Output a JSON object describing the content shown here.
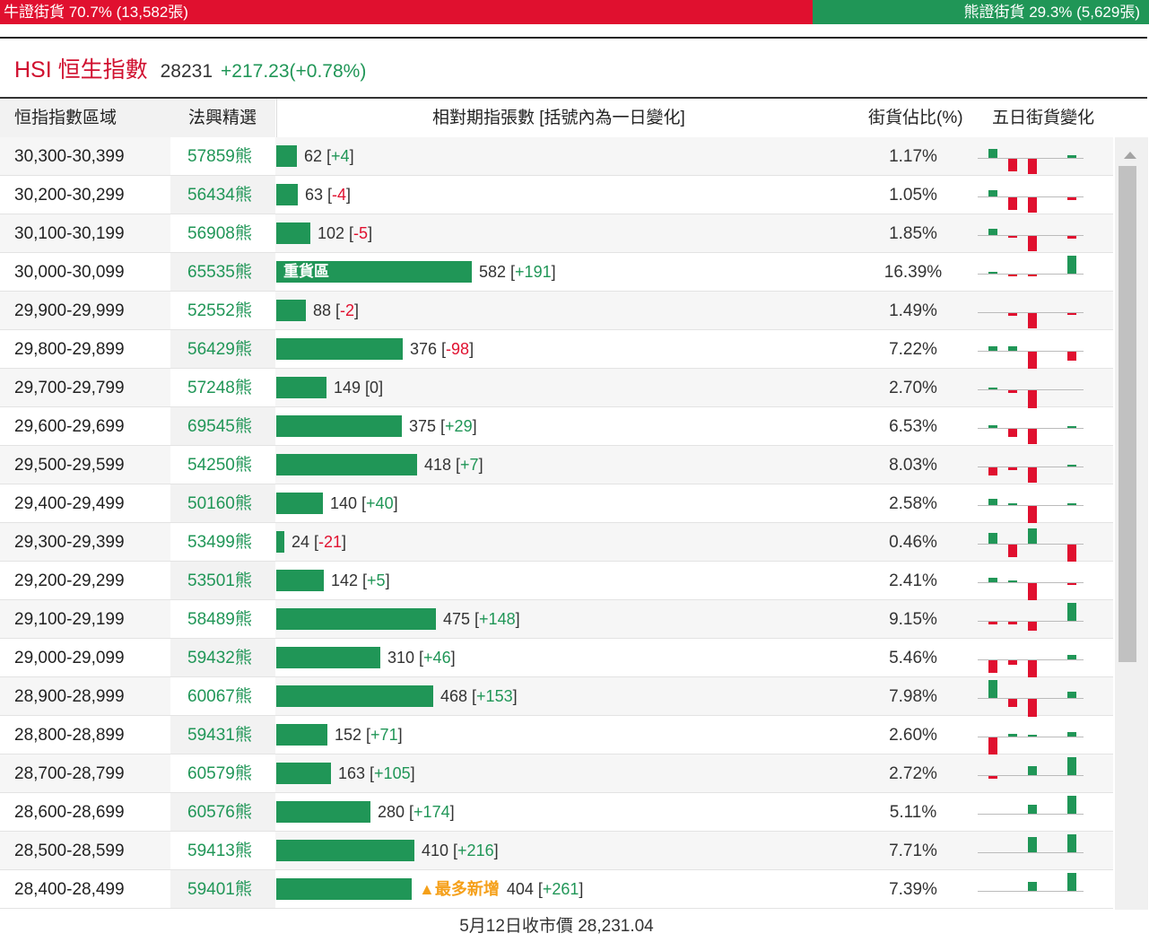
{
  "ratio": {
    "bull_label": "牛證街貨 70.7% (13,582張)",
    "bear_label": "熊證街貨 29.3% (5,629張)",
    "bull_fraction": 0.707,
    "colors": {
      "bull": "#e0102f",
      "bear": "#209657"
    }
  },
  "index": {
    "title": "HSI 恒生指數",
    "value": "28231",
    "change": "+217.23(+0.78%)"
  },
  "headers": {
    "range": "恒指指數區域",
    "code": "法興精選",
    "contracts": "相對期指張數 [括號內為一日變化]",
    "pct": "街貨佔比(%)",
    "five_day": "五日街貨變化"
  },
  "footer": "5月12日收市價 28,231.04",
  "chart_data": {
    "type": "bar",
    "title": "",
    "series_name": "相對期指張數",
    "max_contracts": 582,
    "colors": {
      "up": "#209657",
      "down": "#e0102f"
    },
    "rows": [
      {
        "range": "30,300-30,399",
        "code": "57859熊",
        "contracts": 62,
        "change": "+4",
        "pct": "1.17%",
        "spark": [
          3,
          -4,
          -5,
          0,
          1
        ]
      },
      {
        "range": "30,200-30,299",
        "code": "56434熊",
        "contracts": 63,
        "change": "-4",
        "pct": "1.05%",
        "spark": [
          2,
          -4,
          -5,
          0,
          -1
        ]
      },
      {
        "range": "30,100-30,199",
        "code": "56908熊",
        "contracts": 102,
        "change": "-5",
        "pct": "1.85%",
        "spark": [
          2,
          -0.5,
          -5,
          0,
          -1
        ]
      },
      {
        "range": "30,000-30,099",
        "code": "65535熊",
        "contracts": 582,
        "change": "+191",
        "pct": "16.39%",
        "tag": "重貨區",
        "spark": [
          0.5,
          -0.5,
          -0.5,
          0,
          6
        ]
      },
      {
        "range": "29,900-29,999",
        "code": "52552熊",
        "contracts": 88,
        "change": "-2",
        "pct": "1.49%",
        "spark": [
          0,
          -1,
          -5,
          0,
          -0.5
        ]
      },
      {
        "range": "29,800-29,899",
        "code": "56429熊",
        "contracts": 376,
        "change": "-98",
        "pct": "7.22%",
        "spark": [
          1.5,
          1.5,
          -6,
          0,
          -3
        ]
      },
      {
        "range": "29,700-29,799",
        "code": "57248熊",
        "contracts": 149,
        "change": "0",
        "pct": "2.70%",
        "spark": [
          0.5,
          -1,
          -6,
          0,
          0
        ]
      },
      {
        "range": "29,600-29,699",
        "code": "69545熊",
        "contracts": 375,
        "change": "+29",
        "pct": "6.53%",
        "spark": [
          1,
          -2.5,
          -5,
          0,
          0.5
        ]
      },
      {
        "range": "29,500-29,599",
        "code": "54250熊",
        "contracts": 418,
        "change": "+7",
        "pct": "8.03%",
        "spark": [
          -2.5,
          -1,
          -5,
          0,
          0.5
        ]
      },
      {
        "range": "29,400-29,499",
        "code": "50160熊",
        "contracts": 140,
        "change": "+40",
        "pct": "2.58%",
        "spark": [
          2,
          0.5,
          -6,
          0,
          0.5
        ]
      },
      {
        "range": "29,300-29,399",
        "code": "53499熊",
        "contracts": 24,
        "change": "-21",
        "pct": "0.46%",
        "spark": [
          3.5,
          -4,
          5,
          0,
          -5.5
        ]
      },
      {
        "range": "29,200-29,299",
        "code": "53501熊",
        "contracts": 142,
        "change": "+5",
        "pct": "2.41%",
        "spark": [
          1.5,
          0.5,
          -6,
          0,
          -0.5
        ]
      },
      {
        "range": "29,100-29,199",
        "code": "58489熊",
        "contracts": 475,
        "change": "+148",
        "pct": "9.15%",
        "spark": [
          -1,
          -1,
          -3,
          0,
          6
        ]
      },
      {
        "range": "29,000-29,099",
        "code": "59432熊",
        "contracts": 310,
        "change": "+46",
        "pct": "5.46%",
        "spark": [
          -4,
          -1.5,
          -6,
          0,
          1.5
        ]
      },
      {
        "range": "28,900-28,999",
        "code": "60067熊",
        "contracts": 468,
        "change": "+153",
        "pct": "7.98%",
        "spark": [
          6,
          -2.5,
          -6,
          0,
          2
        ]
      },
      {
        "range": "28,800-28,899",
        "code": "59431熊",
        "contracts": 152,
        "change": "+71",
        "pct": "2.60%",
        "spark": [
          -6,
          1,
          0.5,
          0,
          1.5
        ]
      },
      {
        "range": "28,700-28,799",
        "code": "60579熊",
        "contracts": 163,
        "change": "+105",
        "pct": "2.72%",
        "spark": [
          -1,
          0,
          3,
          0,
          6
        ]
      },
      {
        "range": "28,600-28,699",
        "code": "60576熊",
        "contracts": 280,
        "change": "+174",
        "pct": "5.11%",
        "spark": [
          0,
          0,
          3,
          0,
          6
        ]
      },
      {
        "range": "28,500-28,599",
        "code": "59413熊",
        "contracts": 410,
        "change": "+216",
        "pct": "7.71%",
        "spark": [
          0,
          0,
          5,
          0,
          6
        ]
      },
      {
        "range": "28,400-28,499",
        "code": "59401熊",
        "contracts": 404,
        "change": "+261",
        "pct": "7.39%",
        "newtag": "▲最多新增",
        "spark": [
          0,
          0,
          3,
          0,
          6
        ]
      }
    ]
  }
}
